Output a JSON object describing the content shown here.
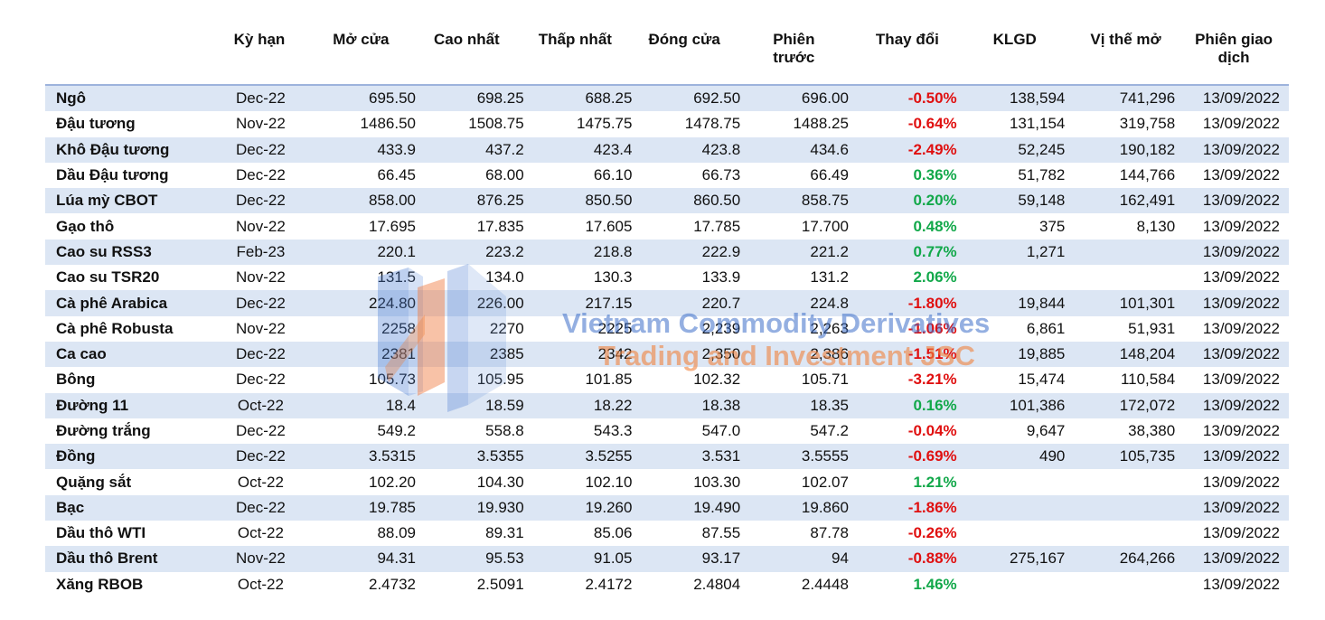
{
  "columns": [
    "",
    "Kỳ hạn",
    "Mở cửa",
    "Cao nhất",
    "Thấp nhất",
    "Đóng cửa",
    "Phiên trước",
    "Thay đổi",
    "KLGD",
    "Vị thế mở",
    "Phiên giao dịch"
  ],
  "rows": [
    {
      "name": "Ngô",
      "term": "Dec-22",
      "open": "695.50",
      "high": "698.25",
      "low": "688.25",
      "close": "692.50",
      "prev": "696.00",
      "change": "-0.50%",
      "volume": "138,594",
      "oi": "741,296",
      "date": "13/09/2022"
    },
    {
      "name": "Đậu tương",
      "term": "Nov-22",
      "open": "1486.50",
      "high": "1508.75",
      "low": "1475.75",
      "close": "1478.75",
      "prev": "1488.25",
      "change": "-0.64%",
      "volume": "131,154",
      "oi": "319,758",
      "date": "13/09/2022"
    },
    {
      "name": "Khô Đậu tương",
      "term": "Dec-22",
      "open": "433.9",
      "high": "437.2",
      "low": "423.4",
      "close": "423.8",
      "prev": "434.6",
      "change": "-2.49%",
      "volume": "52,245",
      "oi": "190,182",
      "date": "13/09/2022"
    },
    {
      "name": "Dầu Đậu tương",
      "term": "Dec-22",
      "open": "66.45",
      "high": "68.00",
      "low": "66.10",
      "close": "66.73",
      "prev": "66.49",
      "change": "0.36%",
      "volume": "51,782",
      "oi": "144,766",
      "date": "13/09/2022"
    },
    {
      "name": "Lúa mỳ CBOT",
      "term": "Dec-22",
      "open": "858.00",
      "high": "876.25",
      "low": "850.50",
      "close": "860.50",
      "prev": "858.75",
      "change": "0.20%",
      "volume": "59,148",
      "oi": "162,491",
      "date": "13/09/2022"
    },
    {
      "name": "Gạo thô",
      "term": "Nov-22",
      "open": "17.695",
      "high": "17.835",
      "low": "17.605",
      "close": "17.785",
      "prev": "17.700",
      "change": "0.48%",
      "volume": "375",
      "oi": "8,130",
      "date": "13/09/2022"
    },
    {
      "name": "Cao su RSS3",
      "term": "Feb-23",
      "open": "220.1",
      "high": "223.2",
      "low": "218.8",
      "close": "222.9",
      "prev": "221.2",
      "change": "0.77%",
      "volume": "1,271",
      "oi": "",
      "date": "13/09/2022"
    },
    {
      "name": "Cao su TSR20",
      "term": "Nov-22",
      "open": "131.5",
      "high": "134.0",
      "low": "130.3",
      "close": "133.9",
      "prev": "131.2",
      "change": "2.06%",
      "volume": "",
      "oi": "",
      "date": "13/09/2022"
    },
    {
      "name": "Cà phê Arabica",
      "term": "Dec-22",
      "open": "224.80",
      "high": "226.00",
      "low": "217.15",
      "close": "220.7",
      "prev": "224.8",
      "change": "-1.80%",
      "volume": "19,844",
      "oi": "101,301",
      "date": "13/09/2022"
    },
    {
      "name": "Cà phê Robusta",
      "term": "Nov-22",
      "open": "2258",
      "high": "2270",
      "low": "2225",
      "close": "2,239",
      "prev": "2,263",
      "change": "-1.06%",
      "volume": "6,861",
      "oi": "51,931",
      "date": "13/09/2022"
    },
    {
      "name": "Ca cao",
      "term": "Dec-22",
      "open": "2381",
      "high": "2385",
      "low": "2342",
      "close": "2,350",
      "prev": "2,386",
      "change": "-1.51%",
      "volume": "19,885",
      "oi": "148,204",
      "date": "13/09/2022"
    },
    {
      "name": "Bông",
      "term": "Dec-22",
      "open": "105.73",
      "high": "105.95",
      "low": "101.85",
      "close": "102.32",
      "prev": "105.71",
      "change": "-3.21%",
      "volume": "15,474",
      "oi": "110,584",
      "date": "13/09/2022"
    },
    {
      "name": "Đường 11",
      "term": "Oct-22",
      "open": "18.4",
      "high": "18.59",
      "low": "18.22",
      "close": "18.38",
      "prev": "18.35",
      "change": "0.16%",
      "volume": "101,386",
      "oi": "172,072",
      "date": "13/09/2022"
    },
    {
      "name": "Đường trắng",
      "term": "Dec-22",
      "open": "549.2",
      "high": "558.8",
      "low": "543.3",
      "close": "547.0",
      "prev": "547.2",
      "change": "-0.04%",
      "volume": "9,647",
      "oi": "38,380",
      "date": "13/09/2022"
    },
    {
      "name": "Đồng",
      "term": "Dec-22",
      "open": "3.5315",
      "high": "3.5355",
      "low": "3.5255",
      "close": "3.531",
      "prev": "3.5555",
      "change": "-0.69%",
      "volume": "490",
      "oi": "105,735",
      "date": "13/09/2022"
    },
    {
      "name": "Quặng sắt",
      "term": "Oct-22",
      "open": "102.20",
      "high": "104.30",
      "low": "102.10",
      "close": "103.30",
      "prev": "102.07",
      "change": "1.21%",
      "volume": "",
      "oi": "",
      "date": "13/09/2022"
    },
    {
      "name": "Bạc",
      "term": "Dec-22",
      "open": "19.785",
      "high": "19.930",
      "low": "19.260",
      "close": "19.490",
      "prev": "19.860",
      "change": "-1.86%",
      "volume": "",
      "oi": "",
      "date": "13/09/2022"
    },
    {
      "name": "Dầu thô WTI",
      "term": "Oct-22",
      "open": "88.09",
      "high": "89.31",
      "low": "85.06",
      "close": "87.55",
      "prev": "87.78",
      "change": "-0.26%",
      "volume": "",
      "oi": "",
      "date": "13/09/2022"
    },
    {
      "name": "Dầu thô Brent",
      "term": "Nov-22",
      "open": "94.31",
      "high": "95.53",
      "low": "91.05",
      "close": "93.17",
      "prev": "94",
      "change": "-0.88%",
      "volume": "275,167",
      "oi": "264,266",
      "date": "13/09/2022"
    },
    {
      "name": "Xăng RBOB",
      "term": "Oct-22",
      "open": "2.4732",
      "high": "2.5091",
      "low": "2.4172",
      "close": "2.4804",
      "prev": "2.4448",
      "change": "1.46%",
      "volume": "",
      "oi": "",
      "date": "13/09/2022"
    }
  ],
  "watermark": {
    "line1": "Vietnam Commodity Derivatives",
    "line2": "Trading and Investment JSC",
    "logo": "vcd-logo"
  },
  "colors": {
    "band": "#dce6f4",
    "negative": "#e01010",
    "positive": "#12a84a",
    "header_rule": "#9db3dc"
  }
}
